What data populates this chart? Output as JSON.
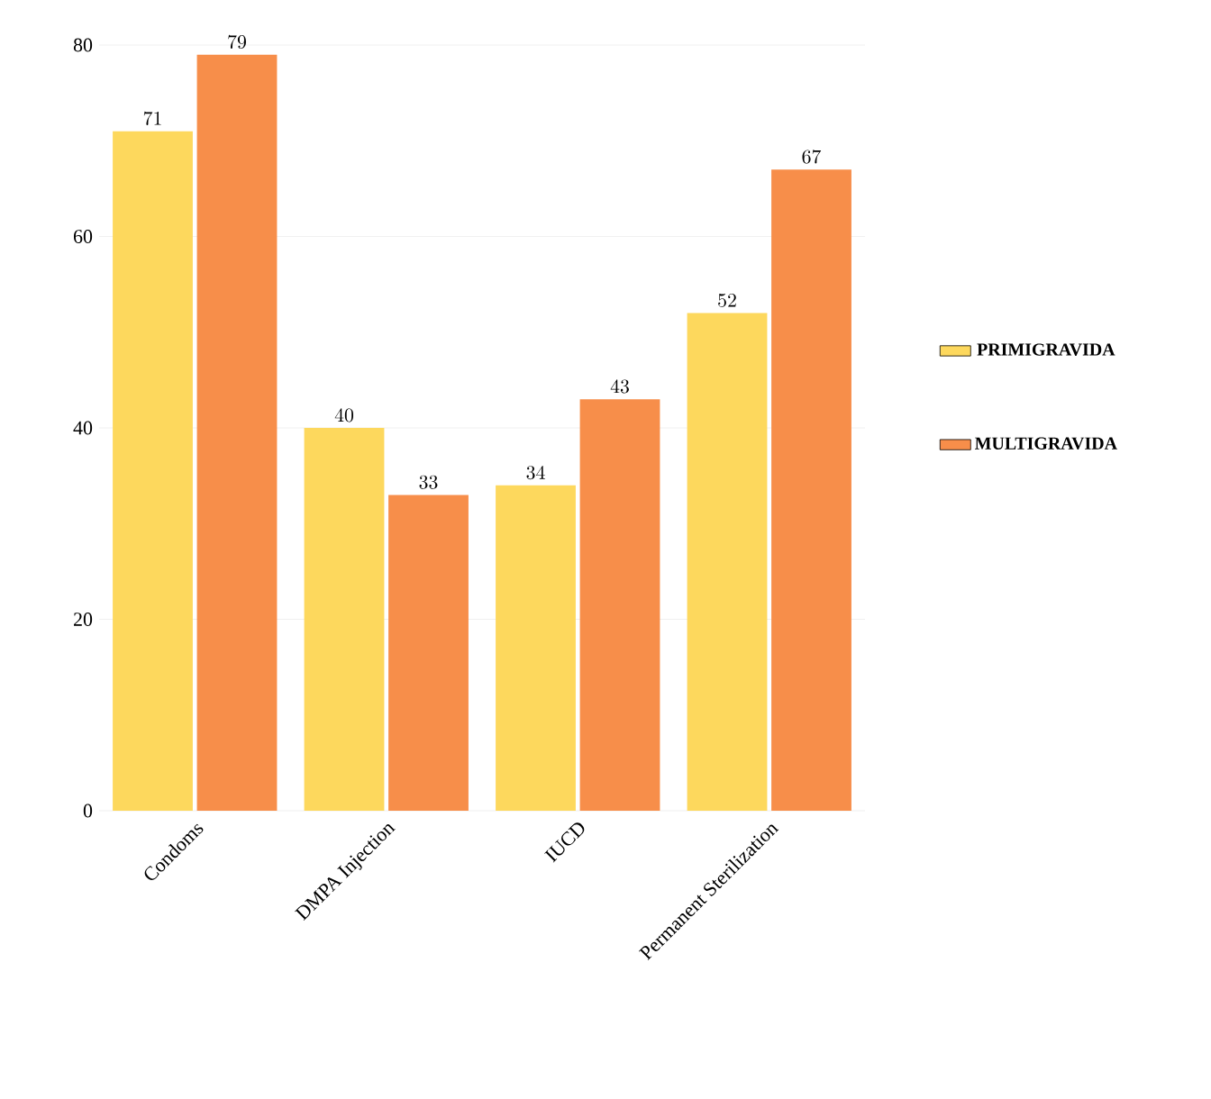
{
  "chart_data": {
    "type": "bar",
    "categories": [
      "Condoms",
      "DMPA Injection",
      "IUCD",
      "Permanent Sterilization"
    ],
    "series": [
      {
        "name": "PRIMIGRAVIDA",
        "color": "#fdd85d",
        "values": [
          71,
          40,
          34,
          52
        ]
      },
      {
        "name": "MULTIGRAVIDA",
        "color": "#f78e4a",
        "values": [
          79,
          33,
          43,
          67
        ]
      }
    ],
    "ylim": [
      0,
      80
    ],
    "yticks": [
      0,
      20,
      40,
      60,
      80
    ],
    "grid": "y",
    "legend": "right",
    "data_labels": true
  }
}
